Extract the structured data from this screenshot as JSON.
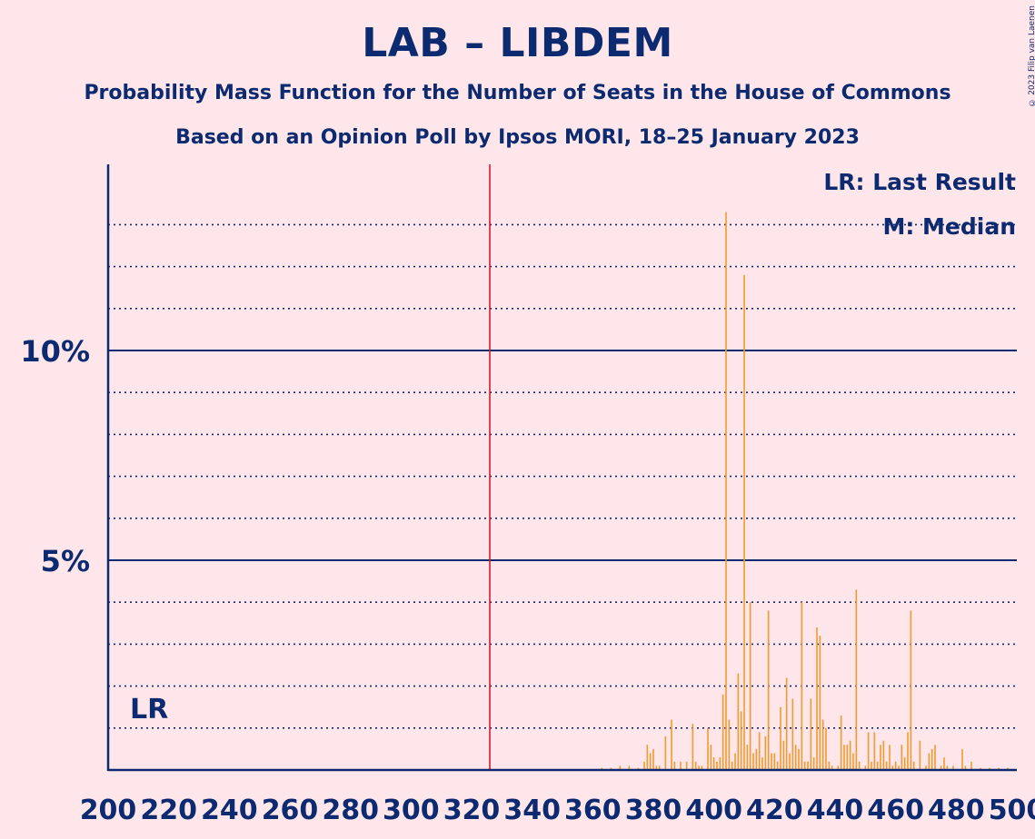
{
  "title": "LAB – LIBDEM",
  "subtitle1": "Probability Mass Function for the Number of Seats in the House of Commons",
  "subtitle2": "Based on an Opinion Poll by Ipsos MORI, 18–25 January 2023",
  "copyright": "© 2023 Filip van Laenen",
  "colors": {
    "background": "#ffe6ea",
    "text": "#0b2a6f",
    "bar": "#f29a2e",
    "majority_line": "#d7192b"
  },
  "chart_data": {
    "type": "bar",
    "x_range": [
      200,
      500
    ],
    "ylim": [
      0,
      14.5
    ],
    "x_ticks": [
      "200",
      "220",
      "240",
      "260",
      "280",
      "300",
      "320",
      "340",
      "360",
      "380",
      "400",
      "420",
      "440",
      "460",
      "480",
      "500"
    ],
    "y_ticks": [
      {
        "value": 5,
        "label": "5%"
      },
      {
        "value": 10,
        "label": "10%"
      }
    ],
    "dotted_gridlines": [
      1,
      2,
      3,
      4,
      6,
      7,
      8,
      9,
      11,
      12,
      13
    ],
    "majority_line": 326,
    "last_result_label": "LR",
    "legend": [
      "LR: Last Result",
      "M: Median"
    ],
    "bars": [
      [
        363,
        0.05
      ],
      [
        366,
        0.05
      ],
      [
        369,
        0.1
      ],
      [
        372,
        0.1
      ],
      [
        375,
        0.05
      ],
      [
        377,
        0.2
      ],
      [
        378,
        0.6
      ],
      [
        379,
        0.4
      ],
      [
        380,
        0.5
      ],
      [
        381,
        0.1
      ],
      [
        382,
        0.1
      ],
      [
        384,
        0.8
      ],
      [
        386,
        1.2
      ],
      [
        387,
        0.2
      ],
      [
        389,
        0.2
      ],
      [
        391,
        0.2
      ],
      [
        393,
        1.1
      ],
      [
        394,
        0.2
      ],
      [
        395,
        0.1
      ],
      [
        396,
        0.1
      ],
      [
        398,
        1.0
      ],
      [
        399,
        0.6
      ],
      [
        400,
        0.3
      ],
      [
        401,
        0.2
      ],
      [
        402,
        0.3
      ],
      [
        403,
        1.8
      ],
      [
        404,
        13.3
      ],
      [
        405,
        1.2
      ],
      [
        406,
        0.2
      ],
      [
        407,
        0.4
      ],
      [
        408,
        2.3
      ],
      [
        409,
        1.4
      ],
      [
        410,
        11.8
      ],
      [
        411,
        0.6
      ],
      [
        412,
        4.0
      ],
      [
        413,
        0.4
      ],
      [
        414,
        0.5
      ],
      [
        415,
        0.9
      ],
      [
        416,
        0.3
      ],
      [
        417,
        0.8
      ],
      [
        418,
        3.8
      ],
      [
        419,
        0.4
      ],
      [
        420,
        0.4
      ],
      [
        421,
        0.2
      ],
      [
        422,
        1.5
      ],
      [
        423,
        0.7
      ],
      [
        424,
        2.2
      ],
      [
        425,
        0.4
      ],
      [
        426,
        1.7
      ],
      [
        427,
        0.6
      ],
      [
        428,
        0.5
      ],
      [
        429,
        4.0
      ],
      [
        430,
        0.2
      ],
      [
        431,
        0.2
      ],
      [
        432,
        1.7
      ],
      [
        433,
        0.3
      ],
      [
        434,
        3.4
      ],
      [
        435,
        3.2
      ],
      [
        436,
        1.2
      ],
      [
        437,
        1.0
      ],
      [
        438,
        0.2
      ],
      [
        439,
        0.1
      ],
      [
        441,
        0.1
      ],
      [
        442,
        1.3
      ],
      [
        443,
        0.6
      ],
      [
        444,
        0.6
      ],
      [
        445,
        0.7
      ],
      [
        446,
        0.4
      ],
      [
        447,
        4.3
      ],
      [
        448,
        0.2
      ],
      [
        450,
        0.1
      ],
      [
        451,
        0.9
      ],
      [
        452,
        0.2
      ],
      [
        453,
        0.9
      ],
      [
        454,
        0.2
      ],
      [
        455,
        0.6
      ],
      [
        456,
        0.7
      ],
      [
        457,
        0.2
      ],
      [
        458,
        0.6
      ],
      [
        459,
        0.1
      ],
      [
        460,
        0.2
      ],
      [
        461,
        0.1
      ],
      [
        462,
        0.6
      ],
      [
        463,
        0.3
      ],
      [
        464,
        0.9
      ],
      [
        465,
        3.8
      ],
      [
        466,
        0.2
      ],
      [
        468,
        0.7
      ],
      [
        470,
        0.1
      ],
      [
        471,
        0.4
      ],
      [
        472,
        0.5
      ],
      [
        473,
        0.6
      ],
      [
        475,
        0.1
      ],
      [
        476,
        0.3
      ],
      [
        477,
        0.1
      ],
      [
        479,
        0.1
      ],
      [
        482,
        0.5
      ],
      [
        483,
        0.1
      ],
      [
        485,
        0.2
      ],
      [
        488,
        0.05
      ],
      [
        491,
        0.05
      ],
      [
        494,
        0.05
      ],
      [
        497,
        0.05
      ]
    ]
  }
}
